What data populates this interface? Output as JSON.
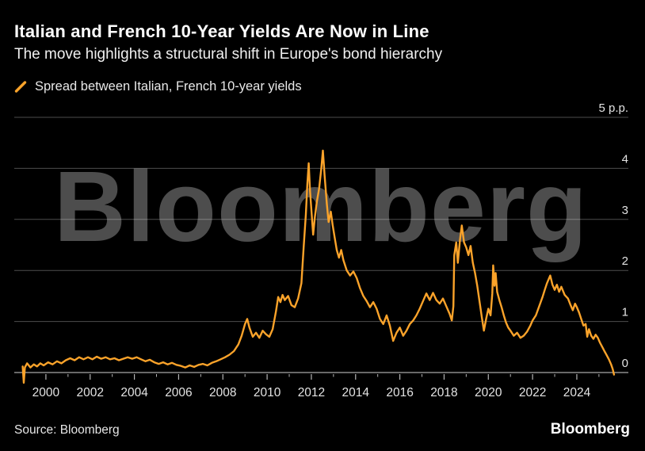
{
  "watermark": "Bloomberg",
  "footer": {
    "source": "Source: Bloomberg",
    "logo": "Bloomberg"
  },
  "colors": {
    "background": "#000000",
    "line": "#fba32a",
    "grid": "rgba(255,255,255,0.30)",
    "axis": "#a8a8a8",
    "tick": "#b5b5b5",
    "label": "#e3e3e3",
    "watermark": "#4d4d4d"
  },
  "chart_data": {
    "type": "line",
    "title": "Italian and French 10-Year Yields Are Now in Line",
    "subtitle": "The move highlights a structural shift in Europe's bond hierarchy",
    "legend_label": "Spread between Italian, French 10-year yields",
    "xlabel": "",
    "ylabel": "p.p.",
    "x_range": [
      1998.57,
      2026.33
    ],
    "y_range": [
      0,
      5
    ],
    "grid": true,
    "legend_position": "top-left",
    "x_axis": {
      "major_ticks": [
        2000,
        2002,
        2004,
        2006,
        2008,
        2010,
        2012,
        2014,
        2016,
        2018,
        2020,
        2022,
        2024
      ],
      "minor_ticks": [
        1999,
        2001,
        2003,
        2005,
        2007,
        2009,
        2011,
        2013,
        2015,
        2017,
        2019,
        2021,
        2023,
        2025
      ]
    },
    "y_axis": {
      "ticks": [
        {
          "value": 5,
          "label": "5 p.p."
        },
        {
          "value": 4,
          "label": "4"
        },
        {
          "value": 3,
          "label": "3"
        },
        {
          "value": 2,
          "label": "2"
        },
        {
          "value": 1,
          "label": "1"
        },
        {
          "value": 0,
          "label": "0"
        }
      ]
    },
    "series": [
      {
        "name": "Spread between Italian, French 10-year yields",
        "points": [
          [
            1998.95,
            0.12
          ],
          [
            1999.0,
            -0.2
          ],
          [
            1999.05,
            0.1
          ],
          [
            1999.15,
            0.18
          ],
          [
            1999.3,
            0.1
          ],
          [
            1999.45,
            0.16
          ],
          [
            1999.6,
            0.12
          ],
          [
            1999.75,
            0.18
          ],
          [
            1999.9,
            0.14
          ],
          [
            2000.1,
            0.2
          ],
          [
            2000.3,
            0.16
          ],
          [
            2000.5,
            0.22
          ],
          [
            2000.7,
            0.18
          ],
          [
            2000.9,
            0.24
          ],
          [
            2001.1,
            0.28
          ],
          [
            2001.3,
            0.24
          ],
          [
            2001.5,
            0.3
          ],
          [
            2001.7,
            0.26
          ],
          [
            2001.9,
            0.3
          ],
          [
            2002.1,
            0.26
          ],
          [
            2002.3,
            0.31
          ],
          [
            2002.5,
            0.27
          ],
          [
            2002.7,
            0.3
          ],
          [
            2002.9,
            0.26
          ],
          [
            2003.1,
            0.28
          ],
          [
            2003.3,
            0.24
          ],
          [
            2003.5,
            0.27
          ],
          [
            2003.7,
            0.3
          ],
          [
            2003.9,
            0.27
          ],
          [
            2004.1,
            0.3
          ],
          [
            2004.3,
            0.26
          ],
          [
            2004.5,
            0.22
          ],
          [
            2004.7,
            0.25
          ],
          [
            2004.9,
            0.2
          ],
          [
            2005.1,
            0.17
          ],
          [
            2005.3,
            0.2
          ],
          [
            2005.5,
            0.16
          ],
          [
            2005.7,
            0.19
          ],
          [
            2005.9,
            0.15
          ],
          [
            2006.1,
            0.13
          ],
          [
            2006.3,
            0.1
          ],
          [
            2006.5,
            0.14
          ],
          [
            2006.7,
            0.11
          ],
          [
            2006.9,
            0.15
          ],
          [
            2007.1,
            0.17
          ],
          [
            2007.3,
            0.14
          ],
          [
            2007.5,
            0.19
          ],
          [
            2007.7,
            0.22
          ],
          [
            2007.9,
            0.26
          ],
          [
            2008.1,
            0.3
          ],
          [
            2008.3,
            0.35
          ],
          [
            2008.5,
            0.42
          ],
          [
            2008.7,
            0.55
          ],
          [
            2008.85,
            0.72
          ],
          [
            2009.0,
            0.95
          ],
          [
            2009.1,
            1.05
          ],
          [
            2009.2,
            0.88
          ],
          [
            2009.35,
            0.7
          ],
          [
            2009.5,
            0.78
          ],
          [
            2009.65,
            0.68
          ],
          [
            2009.8,
            0.82
          ],
          [
            2009.95,
            0.75
          ],
          [
            2010.1,
            0.7
          ],
          [
            2010.25,
            0.85
          ],
          [
            2010.4,
            1.2
          ],
          [
            2010.5,
            1.48
          ],
          [
            2010.6,
            1.38
          ],
          [
            2010.7,
            1.52
          ],
          [
            2010.8,
            1.42
          ],
          [
            2010.95,
            1.5
          ],
          [
            2011.1,
            1.32
          ],
          [
            2011.25,
            1.28
          ],
          [
            2011.4,
            1.45
          ],
          [
            2011.55,
            1.75
          ],
          [
            2011.65,
            2.45
          ],
          [
            2011.75,
            3.1
          ],
          [
            2011.82,
            3.7
          ],
          [
            2011.88,
            4.1
          ],
          [
            2011.94,
            3.55
          ],
          [
            2012.0,
            3.2
          ],
          [
            2012.08,
            2.7
          ],
          [
            2012.16,
            3.05
          ],
          [
            2012.25,
            3.35
          ],
          [
            2012.35,
            3.6
          ],
          [
            2012.45,
            4.0
          ],
          [
            2012.52,
            4.35
          ],
          [
            2012.6,
            3.85
          ],
          [
            2012.7,
            3.3
          ],
          [
            2012.78,
            2.95
          ],
          [
            2012.88,
            3.15
          ],
          [
            2012.96,
            2.9
          ],
          [
            2013.05,
            2.65
          ],
          [
            2013.15,
            2.4
          ],
          [
            2013.25,
            2.25
          ],
          [
            2013.35,
            2.4
          ],
          [
            2013.45,
            2.2
          ],
          [
            2013.6,
            2.0
          ],
          [
            2013.75,
            1.9
          ],
          [
            2013.9,
            1.98
          ],
          [
            2014.05,
            1.85
          ],
          [
            2014.2,
            1.65
          ],
          [
            2014.35,
            1.5
          ],
          [
            2014.5,
            1.4
          ],
          [
            2014.65,
            1.28
          ],
          [
            2014.8,
            1.38
          ],
          [
            2014.95,
            1.25
          ],
          [
            2015.1,
            1.05
          ],
          [
            2015.25,
            0.95
          ],
          [
            2015.4,
            1.12
          ],
          [
            2015.55,
            0.92
          ],
          [
            2015.7,
            0.62
          ],
          [
            2015.85,
            0.78
          ],
          [
            2016.0,
            0.88
          ],
          [
            2016.15,
            0.72
          ],
          [
            2016.3,
            0.82
          ],
          [
            2016.45,
            0.95
          ],
          [
            2016.6,
            1.02
          ],
          [
            2016.75,
            1.12
          ],
          [
            2016.9,
            1.25
          ],
          [
            2017.05,
            1.4
          ],
          [
            2017.2,
            1.55
          ],
          [
            2017.35,
            1.42
          ],
          [
            2017.5,
            1.56
          ],
          [
            2017.65,
            1.42
          ],
          [
            2017.8,
            1.35
          ],
          [
            2017.95,
            1.45
          ],
          [
            2018.1,
            1.3
          ],
          [
            2018.25,
            1.15
          ],
          [
            2018.35,
            1.02
          ],
          [
            2018.42,
            1.3
          ],
          [
            2018.46,
            2.3
          ],
          [
            2018.55,
            2.55
          ],
          [
            2018.62,
            2.15
          ],
          [
            2018.72,
            2.6
          ],
          [
            2018.8,
            2.88
          ],
          [
            2018.9,
            2.55
          ],
          [
            2019.0,
            2.45
          ],
          [
            2019.1,
            2.3
          ],
          [
            2019.2,
            2.48
          ],
          [
            2019.3,
            2.15
          ],
          [
            2019.4,
            1.95
          ],
          [
            2019.5,
            1.7
          ],
          [
            2019.6,
            1.4
          ],
          [
            2019.7,
            1.1
          ],
          [
            2019.8,
            0.82
          ],
          [
            2019.9,
            1.05
          ],
          [
            2020.0,
            1.25
          ],
          [
            2020.1,
            1.12
          ],
          [
            2020.18,
            1.55
          ],
          [
            2020.22,
            2.1
          ],
          [
            2020.28,
            1.7
          ],
          [
            2020.33,
            1.95
          ],
          [
            2020.4,
            1.58
          ],
          [
            2020.5,
            1.42
          ],
          [
            2020.6,
            1.28
          ],
          [
            2020.7,
            1.12
          ],
          [
            2020.8,
            0.98
          ],
          [
            2020.9,
            0.88
          ],
          [
            2021.0,
            0.82
          ],
          [
            2021.15,
            0.72
          ],
          [
            2021.3,
            0.78
          ],
          [
            2021.45,
            0.68
          ],
          [
            2021.6,
            0.72
          ],
          [
            2021.75,
            0.8
          ],
          [
            2021.9,
            0.92
          ],
          [
            2022.0,
            1.02
          ],
          [
            2022.15,
            1.12
          ],
          [
            2022.3,
            1.3
          ],
          [
            2022.45,
            1.48
          ],
          [
            2022.55,
            1.62
          ],
          [
            2022.65,
            1.75
          ],
          [
            2022.8,
            1.9
          ],
          [
            2022.9,
            1.72
          ],
          [
            2023.0,
            1.62
          ],
          [
            2023.1,
            1.72
          ],
          [
            2023.2,
            1.58
          ],
          [
            2023.3,
            1.68
          ],
          [
            2023.45,
            1.52
          ],
          [
            2023.6,
            1.45
          ],
          [
            2023.72,
            1.32
          ],
          [
            2023.82,
            1.22
          ],
          [
            2023.92,
            1.35
          ],
          [
            2024.0,
            1.28
          ],
          [
            2024.1,
            1.18
          ],
          [
            2024.2,
            1.05
          ],
          [
            2024.3,
            0.92
          ],
          [
            2024.4,
            0.95
          ],
          [
            2024.47,
            0.7
          ],
          [
            2024.55,
            0.85
          ],
          [
            2024.65,
            0.72
          ],
          [
            2024.75,
            0.66
          ],
          [
            2024.85,
            0.74
          ],
          [
            2024.95,
            0.68
          ],
          [
            2025.05,
            0.58
          ],
          [
            2025.15,
            0.5
          ],
          [
            2025.25,
            0.42
          ],
          [
            2025.35,
            0.34
          ],
          [
            2025.45,
            0.26
          ],
          [
            2025.55,
            0.16
          ],
          [
            2025.62,
            0.07
          ],
          [
            2025.68,
            -0.04
          ]
        ]
      }
    ]
  }
}
